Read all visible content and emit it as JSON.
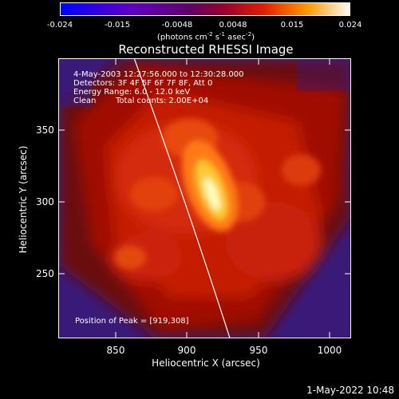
{
  "colorbar": {
    "ticks": [
      "-0.024",
      "-0.015",
      "-0.0048",
      "0.0048",
      "0.015",
      "0.024"
    ],
    "unit_main": "(photons cm",
    "unit_sup1": "-2",
    "unit_mid": " s",
    "unit_sup2": "-1",
    "unit_tail": " asec",
    "unit_sup3": "-2",
    "unit_close": ")"
  },
  "title": "Reconstructed RHESSI Image",
  "info": {
    "time_range": "4-May-2003 12:27:56.000 to 12:30:28.000",
    "detectors": "Detectors: 3F 4F 5F 6F 7F 8F, Att 0",
    "energy": "Energy Range: 6.0 - 12.0 keV",
    "clean": "Clean",
    "total_counts": "Total counts: 2.00E+04"
  },
  "peak": "Position of Peak = [919,308]",
  "axes": {
    "x_label": "Heliocentric X (arcsec)",
    "y_label": "Heliocentric Y (arcsec)",
    "x_ticks": [
      "850",
      "900",
      "950",
      "1000"
    ],
    "y_ticks": [
      "350",
      "300",
      "250"
    ]
  },
  "footer": "1-May-2022 10:48",
  "colors": {
    "background": "#000000",
    "frame": "#ffffff",
    "limb": "#ffffff"
  }
}
